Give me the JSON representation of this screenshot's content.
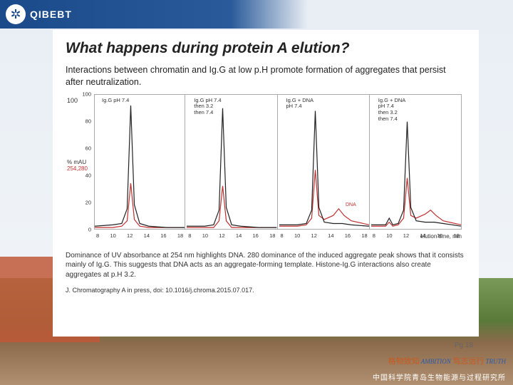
{
  "header": {
    "logo_text": "QIBEBT"
  },
  "slide": {
    "title": "What happens during protein A elution?",
    "subtitle": "Interactions between chromatin and Ig.G at low p.H promote formation of aggregates that persist after neutralization.",
    "caption": "Dominance of UV absorbance at 254 nm highlights DNA. 280 dominance of the induced aggregate peak shows that it consists mainly of Ig.G. This suggests that DNA acts as an aggregate-forming template. Histone-Ig.G interactions also create aggregates at p.H 3.2.",
    "citation": "J. Chromatography A in press, doi: 10.1016/j.chroma.2015.07.017."
  },
  "chart": {
    "type": "line",
    "y_top_label": "100",
    "y_unit": "% mAU",
    "y_wavelengths": "254,280",
    "x_label": "elution time, min",
    "ylim": [
      0,
      100
    ],
    "yticks": [
      0,
      20,
      40,
      60,
      80,
      100
    ],
    "xlim": [
      8,
      18
    ],
    "xticks": [
      8,
      10,
      12,
      14,
      16,
      18
    ],
    "series_colors": {
      "s254": "#c03030",
      "s280": "#222222"
    },
    "line_width": 1.2,
    "background_color": "#ffffff",
    "border_color": "#aaaaaa",
    "panels": [
      {
        "label": "Ig.G pH 7.4",
        "dna_annot": "",
        "s280": [
          [
            8,
            2
          ],
          [
            10,
            3
          ],
          [
            11,
            4
          ],
          [
            11.6,
            15
          ],
          [
            12,
            92
          ],
          [
            12.4,
            18
          ],
          [
            13,
            4
          ],
          [
            14,
            2
          ],
          [
            16,
            1
          ],
          [
            18,
            1
          ]
        ],
        "s254": [
          [
            8,
            1
          ],
          [
            10,
            1
          ],
          [
            11,
            2
          ],
          [
            11.6,
            6
          ],
          [
            12,
            34
          ],
          [
            12.4,
            7
          ],
          [
            13,
            2
          ],
          [
            14,
            1
          ],
          [
            16,
            1
          ],
          [
            18,
            1
          ]
        ]
      },
      {
        "label": "Ig.G pH 7.4\nthen 3.2\nthen 7.4",
        "dna_annot": "",
        "s280": [
          [
            8,
            2
          ],
          [
            10,
            2
          ],
          [
            11,
            3
          ],
          [
            11.6,
            14
          ],
          [
            12,
            90
          ],
          [
            12.4,
            16
          ],
          [
            13,
            3
          ],
          [
            14,
            2
          ],
          [
            16,
            1
          ],
          [
            18,
            1
          ]
        ],
        "s254": [
          [
            8,
            1
          ],
          [
            10,
            1
          ],
          [
            11,
            1
          ],
          [
            11.6,
            6
          ],
          [
            12,
            32
          ],
          [
            12.4,
            6
          ],
          [
            13,
            1
          ],
          [
            14,
            1
          ],
          [
            16,
            1
          ],
          [
            18,
            1
          ]
        ]
      },
      {
        "label": "Ig.G + DNA\npH 7.4",
        "dna_annot": "DNA",
        "s280": [
          [
            8,
            3
          ],
          [
            10,
            3
          ],
          [
            11,
            4
          ],
          [
            11.6,
            14
          ],
          [
            12,
            88
          ],
          [
            12.4,
            16
          ],
          [
            13,
            5
          ],
          [
            14,
            4
          ],
          [
            15,
            4
          ],
          [
            16,
            3
          ],
          [
            18,
            2
          ]
        ],
        "s254": [
          [
            8,
            2
          ],
          [
            10,
            2
          ],
          [
            11,
            3
          ],
          [
            11.6,
            8
          ],
          [
            12,
            44
          ],
          [
            12.4,
            10
          ],
          [
            13,
            7
          ],
          [
            14,
            10
          ],
          [
            14.6,
            15
          ],
          [
            15.2,
            10
          ],
          [
            16,
            6
          ],
          [
            18,
            3
          ]
        ]
      },
      {
        "label": "Ig.G + DNA\npH 7.4\nthen 3.2\nthen 7.4",
        "dna_annot": "",
        "s280": [
          [
            8,
            3
          ],
          [
            9.6,
            3
          ],
          [
            10,
            8
          ],
          [
            10.4,
            3
          ],
          [
            11,
            4
          ],
          [
            11.6,
            14
          ],
          [
            12,
            80
          ],
          [
            12.4,
            16
          ],
          [
            13,
            6
          ],
          [
            14,
            5
          ],
          [
            15,
            5
          ],
          [
            16,
            4
          ],
          [
            18,
            2
          ]
        ],
        "s254": [
          [
            8,
            2
          ],
          [
            9.6,
            2
          ],
          [
            10,
            5
          ],
          [
            10.4,
            2
          ],
          [
            11,
            3
          ],
          [
            11.6,
            8
          ],
          [
            12,
            38
          ],
          [
            12.4,
            10
          ],
          [
            13,
            8
          ],
          [
            14,
            11
          ],
          [
            14.6,
            14
          ],
          [
            15.2,
            10
          ],
          [
            16,
            6
          ],
          [
            18,
            3
          ]
        ]
      }
    ]
  },
  "footer": {
    "motto_cn1": "格物致知",
    "motto_en1": "AMBITION",
    "motto_cn2": "笃志远行",
    "motto_en2": "TRUTH",
    "org": "中国科学院青岛生物能源与过程研究所",
    "page": "Pg 18"
  }
}
